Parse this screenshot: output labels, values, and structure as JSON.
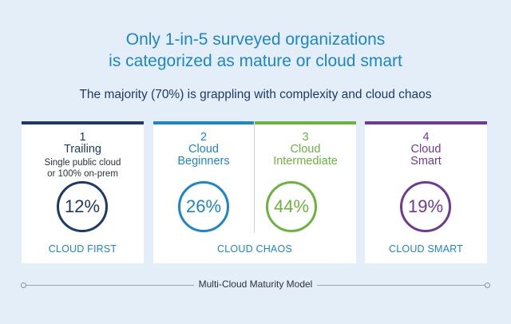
{
  "headline": {
    "line1": "Only 1-in-5 surveyed organizations",
    "line2": "is categorized as mature or cloud smart"
  },
  "subhead": "The majority (70%) is grappling with complexity and cloud chaos",
  "colors": {
    "trailing": "#1e3a68",
    "beginners": "#1d86c8",
    "intermediate": "#6cb33e",
    "smart": "#6e3a93"
  },
  "stages": [
    {
      "number": "1",
      "name_line1": "Trailing",
      "name_line2": "",
      "description_line1": "Single public cloud",
      "description_line2": "or 100% on-prem",
      "percent": "12%"
    },
    {
      "number": "2",
      "name_line1": "Cloud",
      "name_line2": "Beginners",
      "percent": "26%"
    },
    {
      "number": "3",
      "name_line1": "Cloud",
      "name_line2": "Intermediate",
      "percent": "44%"
    },
    {
      "number": "4",
      "name_line1": "Cloud",
      "name_line2": "Smart",
      "percent": "19%"
    }
  ],
  "categories": {
    "first": "CLOUD FIRST",
    "chaos": "CLOUD CHAOS",
    "smart": "CLOUD SMART"
  },
  "footer": "Multi-Cloud Maturity Model"
}
